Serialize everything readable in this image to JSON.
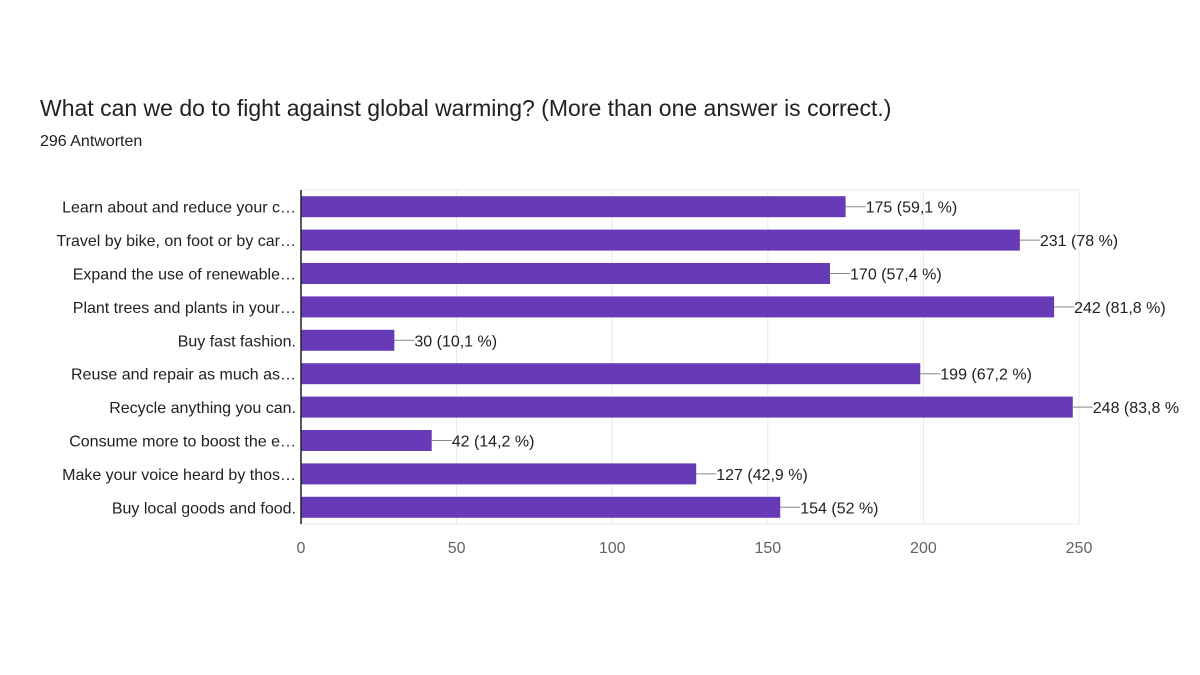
{
  "header": {
    "title": "What can we do to fight against global warming? (More than one answer is correct.)",
    "response_count": "296 Antworten"
  },
  "colors": {
    "bar": "#673ab7",
    "grid": "#e8e8e8",
    "axis": "#202124"
  },
  "chart_data": {
    "type": "bar",
    "orientation": "horizontal",
    "categories": [
      "Learn about and reduce your c…",
      "Travel by bike, on foot or by car…",
      "Expand the use of renewable…",
      "Plant trees and plants in your…",
      "Buy fast fashion.",
      "Reuse and repair as much as…",
      "Recycle anything you can.",
      "Consume more to boost the e…",
      "Make your voice heard by thos…",
      "Buy local goods and food."
    ],
    "values": [
      175,
      231,
      170,
      242,
      30,
      199,
      248,
      42,
      127,
      154
    ],
    "data_labels": [
      "175 (59,1 %)",
      "231 (78 %)",
      "170 (57,4 %)",
      "242 (81,8 %)",
      "30 (10,1 %)",
      "199 (67,2 %)",
      "248 (83,8 %",
      "42 (14,2 %)",
      "127 (42,9 %)",
      "154 (52 %)"
    ],
    "xlim": [
      0,
      250
    ],
    "xticks": [
      0,
      50,
      100,
      150,
      200,
      250
    ],
    "grid": true
  }
}
